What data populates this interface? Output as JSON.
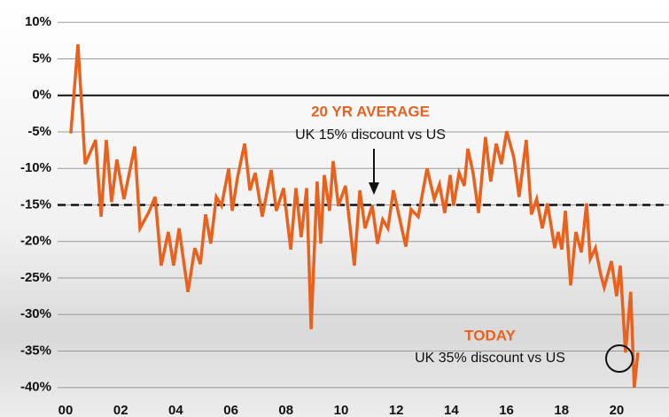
{
  "chart_data": {
    "type": "line",
    "x": [
      2000.19,
      2000.45,
      2000.71,
      2001.09,
      2001.29,
      2001.48,
      2001.67,
      2001.86,
      2002.12,
      2002.51,
      2002.7,
      2003.02,
      2003.25,
      2003.47,
      2003.73,
      2003.92,
      2004.12,
      2004.44,
      2004.69,
      2004.89,
      2005.08,
      2005.27,
      2005.47,
      2005.66,
      2005.92,
      2006.05,
      2006.24,
      2006.5,
      2006.69,
      2006.88,
      2007.14,
      2007.46,
      2007.65,
      2007.91,
      2008.17,
      2008.36,
      2008.55,
      2008.75,
      2008.91,
      2009.13,
      2009.26,
      2009.39,
      2009.58,
      2009.71,
      2009.9,
      2010.16,
      2010.48,
      2010.68,
      2010.87,
      2011.13,
      2011.32,
      2011.51,
      2011.7,
      2011.9,
      2012.15,
      2012.35,
      2012.54,
      2012.8,
      2013.12,
      2013.38,
      2013.57,
      2013.76,
      2013.96,
      2014.08,
      2014.28,
      2014.47,
      2014.6,
      2014.79,
      2014.99,
      2015.24,
      2015.43,
      2015.63,
      2015.82,
      2016.01,
      2016.27,
      2016.46,
      2016.72,
      2016.91,
      2017.1,
      2017.3,
      2017.49,
      2017.75,
      2017.88,
      2018.01,
      2018.14,
      2018.33,
      2018.52,
      2018.72,
      2018.91,
      2019.04,
      2019.23,
      2019.42,
      2019.55,
      2019.81,
      2020.0,
      2020.13,
      2020.32,
      2020.51,
      2020.64,
      2020.77
    ],
    "series": [
      {
        "color": "#e8621e",
        "values": [
          -5.2,
          7,
          -9.4,
          -6.1,
          -16.6,
          -6.1,
          -14.6,
          -8.8,
          -14.2,
          -7,
          -18.2,
          -16,
          -13.9,
          -23.3,
          -18.7,
          -23.3,
          -18.2,
          -26.9,
          -20.9,
          -23.1,
          -16.3,
          -20.3,
          -13.9,
          -15.1,
          -10,
          -15.8,
          -11.2,
          -6.6,
          -13,
          -10.6,
          -16.6,
          -10.2,
          -15.8,
          -12.7,
          -21.1,
          -12.7,
          -19.4,
          -12.7,
          -32,
          -11.8,
          -20.3,
          -10.9,
          -15.8,
          -9,
          -15.1,
          -12.4,
          -23.3,
          -13,
          -18.2,
          -15.1,
          -20.3,
          -17,
          -18.2,
          -13,
          -17.3,
          -20.7,
          -15.6,
          -16.6,
          -10,
          -14.2,
          -12.2,
          -16.1,
          -10.9,
          -15.1,
          -10.6,
          -12.4,
          -7.3,
          -10.6,
          -16.1,
          -5.7,
          -11.8,
          -6.6,
          -9.4,
          -4.9,
          -8.5,
          -13.9,
          -6.1,
          -16.3,
          -14.2,
          -18.2,
          -14.8,
          -20.9,
          -18.7,
          -21.1,
          -15.8,
          -26,
          -18.7,
          -21.5,
          -14.8,
          -22.4,
          -20.9,
          -24.5,
          -26.3,
          -22.7,
          -27.5,
          -23.3,
          -35.2,
          -26.9,
          -40,
          -35.2
        ]
      }
    ],
    "xlim": [
      1999.71,
      2021.9
    ],
    "xticks": [
      {
        "value": 2000,
        "label": "00"
      },
      {
        "value": 2002,
        "label": "02"
      },
      {
        "value": 2004,
        "label": "04"
      },
      {
        "value": 2006,
        "label": "06"
      },
      {
        "value": 2008,
        "label": "08"
      },
      {
        "value": 2010,
        "label": "10"
      },
      {
        "value": 2012,
        "label": "12"
      },
      {
        "value": 2014,
        "label": "14"
      },
      {
        "value": 2016,
        "label": "16"
      },
      {
        "value": 2018,
        "label": "18"
      },
      {
        "value": 2020,
        "label": "20"
      }
    ],
    "ylim": [
      -41,
      11
    ],
    "yticks": [
      {
        "value": 10,
        "label": "10%"
      },
      {
        "value": 5,
        "label": "5%"
      },
      {
        "value": 0,
        "label": "0%"
      },
      {
        "value": -5,
        "label": "-5%"
      },
      {
        "value": -10,
        "label": "-10%"
      },
      {
        "value": -15,
        "label": "-15%"
      },
      {
        "value": -20,
        "label": "-20%"
      },
      {
        "value": -25,
        "label": "-25%"
      },
      {
        "value": -30,
        "label": "-30%"
      },
      {
        "value": -35,
        "label": "-35%"
      },
      {
        "value": -40,
        "label": "-40%"
      }
    ],
    "grid": true,
    "average_line": -15,
    "annotations": {
      "average_title": "20 YR AVERAGE",
      "average_text": "UK 15% discount vs US",
      "today_title": "TODAY",
      "today_text": "UK 35% discount vs US"
    }
  }
}
